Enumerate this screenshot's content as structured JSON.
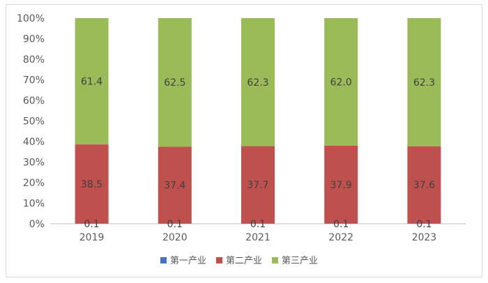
{
  "chart_data": {
    "type": "bar",
    "stacked": true,
    "percent": true,
    "categories": [
      "2019",
      "2020",
      "2021",
      "2022",
      "2023"
    ],
    "series": [
      {
        "name": "第一产业",
        "color": "#4472c4",
        "values": [
          0.1,
          0.1,
          0.1,
          0.1,
          0.1
        ]
      },
      {
        "name": "第二产业",
        "color": "#c0504d",
        "values": [
          38.5,
          37.4,
          37.7,
          37.9,
          37.6
        ]
      },
      {
        "name": "第三产业",
        "color": "#9bbb59",
        "values": [
          61.4,
          62.5,
          62.3,
          62.0,
          62.3
        ]
      }
    ],
    "yticks": [
      "0%",
      "10%",
      "20%",
      "30%",
      "40%",
      "50%",
      "60%",
      "70%",
      "80%",
      "90%",
      "100%"
    ],
    "ylim": [
      0,
      100
    ],
    "grid": false,
    "legend": "bottom"
  }
}
